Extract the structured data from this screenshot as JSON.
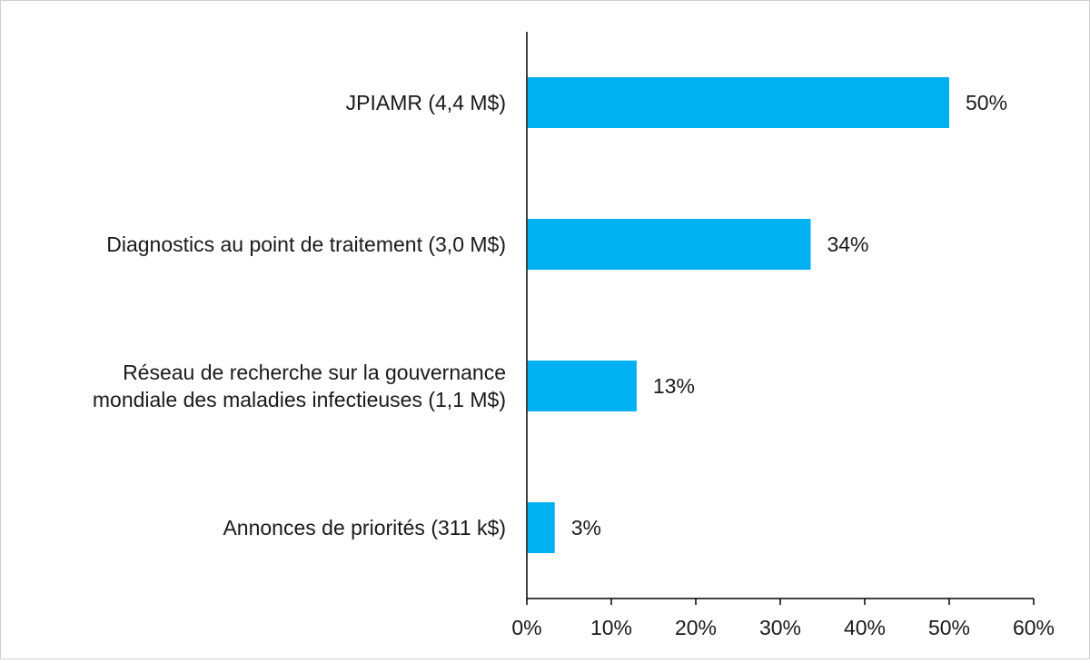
{
  "chart_data": {
    "type": "bar",
    "orientation": "horizontal",
    "categories": [
      [
        "JPIAMR (4,4 M$)"
      ],
      [
        "Diagnostics au point de traitement (3,0 M$)"
      ],
      [
        "Réseau de recherche sur la gouvernance",
        "mondiale des maladies infectieuses (1,1 M$)"
      ],
      [
        "Annonces de priorités (311 k$)"
      ]
    ],
    "values": [
      50,
      33.6,
      13,
      3.3
    ],
    "data_labels": [
      "50%",
      "34%",
      "13%",
      "3%"
    ],
    "xticks": [
      "0%",
      "10%",
      "20%",
      "30%",
      "40%",
      "50%",
      "60%"
    ],
    "xlim": [
      0,
      60
    ],
    "title": "",
    "xlabel": "",
    "ylabel": "",
    "grid": false,
    "legend": "none",
    "bar_color": "#00b0f0",
    "axis_color": "#000000"
  }
}
